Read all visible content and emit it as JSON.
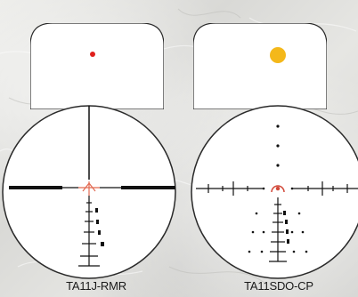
{
  "products": [
    {
      "name": "TA11J-RMR",
      "dot_color": "#e0201c"
    },
    {
      "name": "TA11SDO-CP",
      "dot_color": "#f4b81a"
    }
  ],
  "colors": {
    "reticle_black": "#111111",
    "center_red": "#e26a52",
    "window_fill": "#ffffff"
  }
}
